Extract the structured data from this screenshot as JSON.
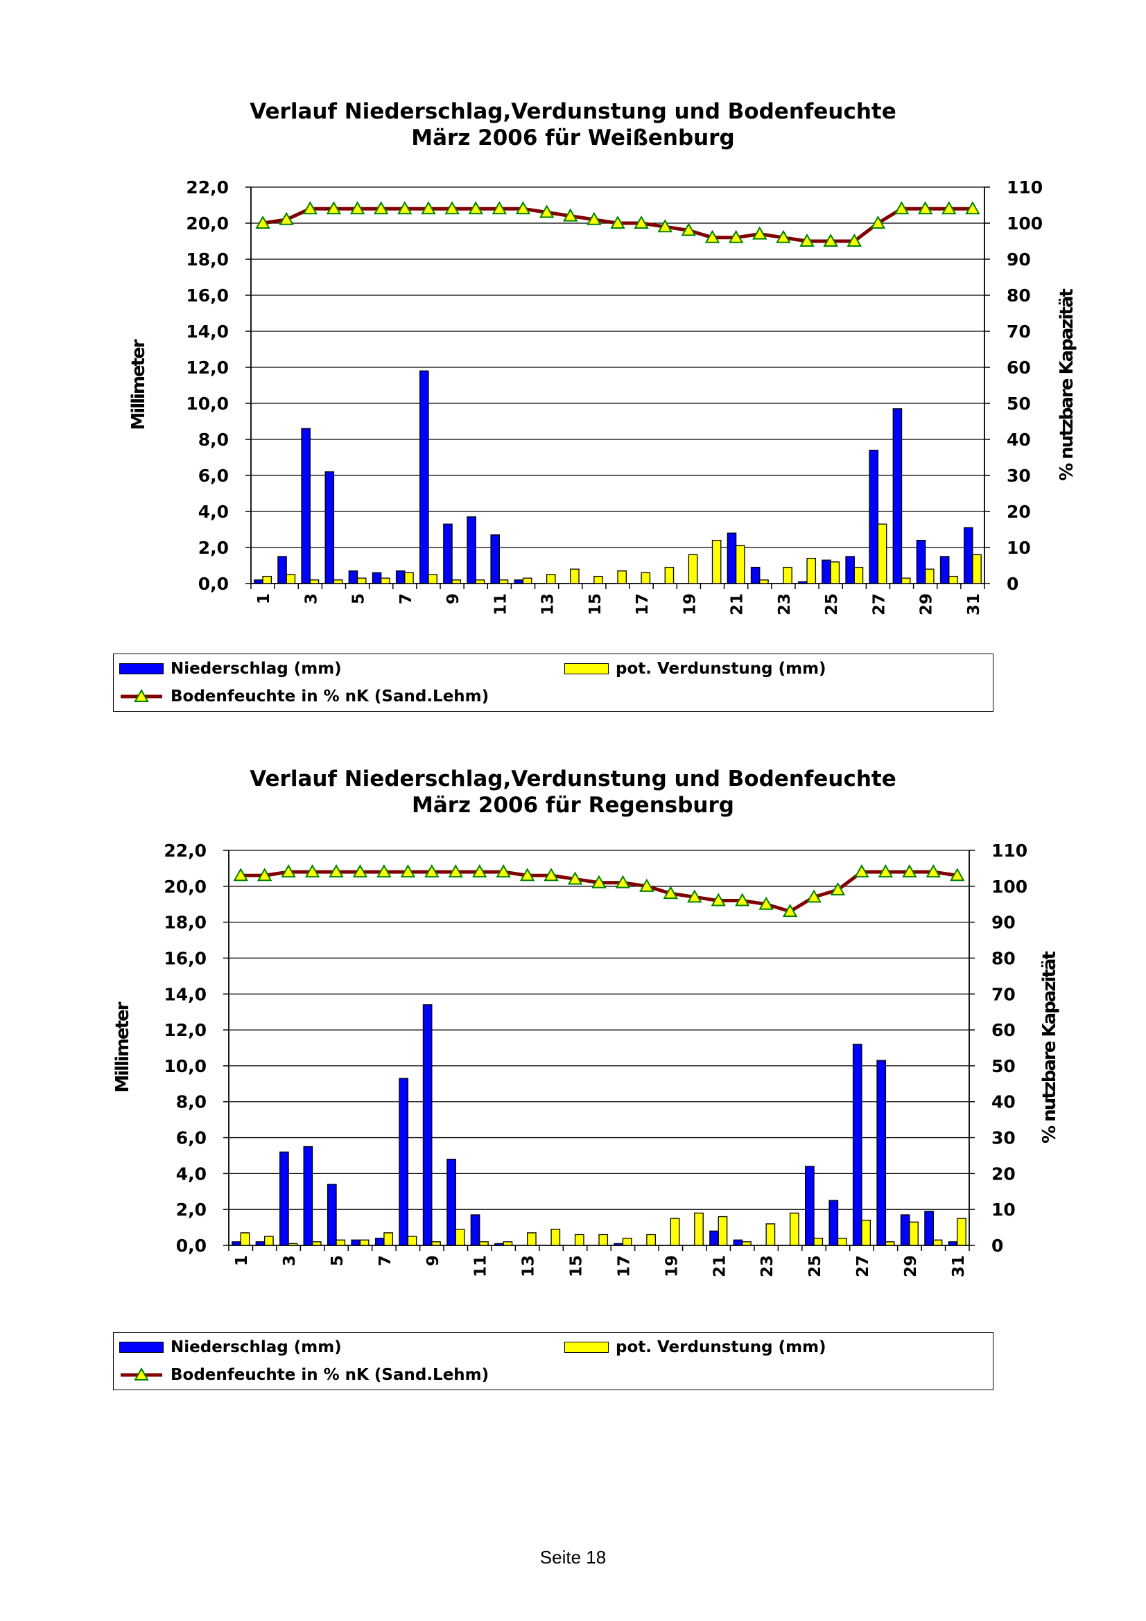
{
  "colors": {
    "niederschlag": "#0000ff",
    "verdunstung": "#ffff00",
    "bodenfeuchte_line": "#800000",
    "bodenfeuchte_marker": "#ffff00",
    "marker_edge": "#008000",
    "gridline": "#000000"
  },
  "legend": {
    "niederschlag": "Niederschlag (mm)",
    "verdunstung": "pot. Verdunstung (mm)",
    "bodenfeuchte": "Bodenfeuchte in % nK (Sand.Lehm)"
  },
  "footer": "Seite 18",
  "charts": [
    {
      "title_line1": "Verlauf Niederschlag,Verdunstung und Bodenfeuchte",
      "title_line2": "März 2006 für Weißenburg",
      "ylabel_left": "Millimeter",
      "ylabel_right": "% nutzbare Kapazität"
    },
    {
      "title_line1": "Verlauf Niederschlag,Verdunstung und Bodenfeuchte",
      "title_line2": "März 2006 für Regensburg",
      "ylabel_left": "Millimeter",
      "ylabel_right": "% nutzbare Kapazität"
    }
  ],
  "chart_data": [
    {
      "type": "bar",
      "title": "Verlauf Niederschlag,Verdunstung und Bodenfeuchte März 2006 für Weißenburg",
      "ylabel": "Millimeter",
      "y2label": "% nutzbare Kapazität",
      "ylim": [
        0,
        22
      ],
      "y2lim": [
        0,
        110
      ],
      "yticks": [
        "0,0",
        "2,0",
        "4,0",
        "6,0",
        "8,0",
        "10,0",
        "12,0",
        "14,0",
        "16,0",
        "18,0",
        "20,0",
        "22,0"
      ],
      "y2ticks": [
        "0",
        "10",
        "20",
        "30",
        "40",
        "50",
        "60",
        "70",
        "80",
        "90",
        "100",
        "110"
      ],
      "categories": [
        1,
        2,
        3,
        4,
        5,
        6,
        7,
        8,
        9,
        10,
        11,
        12,
        13,
        14,
        15,
        16,
        17,
        18,
        19,
        20,
        21,
        22,
        23,
        24,
        25,
        26,
        27,
        28,
        29,
        30,
        31
      ],
      "xtick_labels": [
        "1",
        "3",
        "5",
        "7",
        "9",
        "11",
        "13",
        "15",
        "17",
        "19",
        "21",
        "23",
        "25",
        "27",
        "29",
        "31"
      ],
      "grid": true,
      "legend_position": "bottom",
      "series": [
        {
          "name": "Niederschlag (mm)",
          "kind": "bar",
          "values": [
            0.2,
            1.5,
            8.6,
            6.2,
            0.7,
            0.6,
            0.7,
            11.8,
            3.3,
            3.7,
            2.7,
            0.2,
            0,
            0,
            0,
            0,
            0,
            0,
            0,
            0,
            2.8,
            0.9,
            0,
            0.1,
            1.3,
            1.5,
            7.4,
            9.7,
            2.4,
            1.5,
            3.1
          ]
        },
        {
          "name": "pot. Verdunstung (mm)",
          "kind": "bar",
          "values": [
            0.4,
            0.5,
            0.2,
            0.2,
            0.3,
            0.3,
            0.6,
            0.5,
            0.2,
            0.2,
            0.2,
            0.3,
            0.5,
            0.8,
            0.4,
            0.7,
            0.6,
            0.9,
            1.6,
            2.4,
            2.1,
            0.2,
            0.9,
            1.4,
            1.2,
            0.9,
            3.3,
            0.3,
            0.8,
            0.4,
            1.6
          ]
        },
        {
          "name": "Bodenfeuchte in % nK (Sand.Lehm)",
          "kind": "line",
          "axis": "right",
          "values": [
            100,
            101,
            104,
            104,
            104,
            104,
            104,
            104,
            104,
            104,
            104,
            104,
            103,
            102,
            101,
            100,
            100,
            99,
            98,
            96,
            96,
            97,
            96,
            95,
            95,
            95,
            100,
            104,
            104,
            104,
            104
          ]
        }
      ]
    },
    {
      "type": "bar",
      "title": "Verlauf Niederschlag,Verdunstung und Bodenfeuchte März 2006 für Regensburg",
      "ylabel": "Millimeter",
      "y2label": "% nutzbare Kapazität",
      "ylim": [
        0,
        22
      ],
      "y2lim": [
        0,
        110
      ],
      "yticks": [
        "0,0",
        "2,0",
        "4,0",
        "6,0",
        "8,0",
        "10,0",
        "12,0",
        "14,0",
        "16,0",
        "18,0",
        "20,0",
        "22,0"
      ],
      "y2ticks": [
        "0",
        "10",
        "20",
        "30",
        "40",
        "50",
        "60",
        "70",
        "80",
        "90",
        "100",
        "110"
      ],
      "categories": [
        1,
        2,
        3,
        4,
        5,
        6,
        7,
        8,
        9,
        10,
        11,
        12,
        13,
        14,
        15,
        16,
        17,
        18,
        19,
        20,
        21,
        22,
        23,
        24,
        25,
        26,
        27,
        28,
        29,
        30,
        31
      ],
      "xtick_labels": [
        "1",
        "3",
        "5",
        "7",
        "9",
        "11",
        "13",
        "15",
        "17",
        "19",
        "21",
        "23",
        "25",
        "27",
        "29",
        "31"
      ],
      "grid": true,
      "legend_position": "bottom",
      "series": [
        {
          "name": "Niederschlag (mm)",
          "kind": "bar",
          "values": [
            0.2,
            0.2,
            5.2,
            5.5,
            3.4,
            0.3,
            0.4,
            9.3,
            13.4,
            4.8,
            1.7,
            0.1,
            0,
            0,
            0,
            0,
            0.1,
            0,
            0,
            0,
            0.8,
            0.3,
            0,
            0,
            4.4,
            2.5,
            11.2,
            10.3,
            1.7,
            1.9,
            0.2
          ]
        },
        {
          "name": "pot. Verdunstung (mm)",
          "kind": "bar",
          "values": [
            0.7,
            0.5,
            0.1,
            0.2,
            0.3,
            0.3,
            0.7,
            0.5,
            0.2,
            0.9,
            0.2,
            0.2,
            0.7,
            0.9,
            0.6,
            0.6,
            0.4,
            0.6,
            1.5,
            1.8,
            1.6,
            0.2,
            1.2,
            1.8,
            0.4,
            0.4,
            1.4,
            0.2,
            1.3,
            0.3,
            1.5
          ]
        },
        {
          "name": "Bodenfeuchte in % nK (Sand.Lehm)",
          "kind": "line",
          "axis": "right",
          "values": [
            103,
            103,
            104,
            104,
            104,
            104,
            104,
            104,
            104,
            104,
            104,
            104,
            103,
            103,
            102,
            101,
            101,
            100,
            98,
            97,
            96,
            96,
            95,
            93,
            97,
            99,
            104,
            104,
            104,
            104,
            103
          ]
        }
      ]
    }
  ]
}
